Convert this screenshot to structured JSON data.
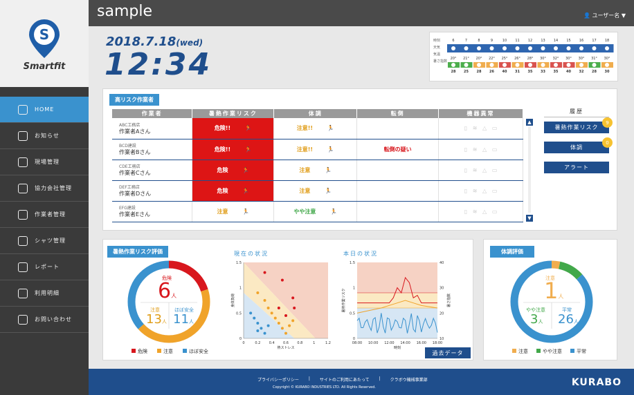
{
  "app": {
    "brand": "sample",
    "user_label": "ユーザー名 ▼",
    "logo_text": "Smartfit"
  },
  "nav": {
    "items": [
      {
        "label": "HOME",
        "icon": "home-icon"
      },
      {
        "label": "お知らせ",
        "icon": "info-icon"
      },
      {
        "label": "現場管理",
        "icon": "site-icon"
      },
      {
        "label": "協力会社管理",
        "icon": "handshake-icon"
      },
      {
        "label": "作業者管理",
        "icon": "helmet-icon"
      },
      {
        "label": "シャツ管理",
        "icon": "shirt-icon"
      },
      {
        "label": "レポート",
        "icon": "report-icon"
      },
      {
        "label": "利用明細",
        "icon": "statement-icon"
      },
      {
        "label": "お問い合わせ",
        "icon": "question-icon"
      }
    ]
  },
  "clock": {
    "date": "2018.7.18",
    "weekday": "(wed)",
    "time": "12:34"
  },
  "weather": {
    "row_labels": [
      "時刻",
      "天気",
      "気温",
      "暑さ指数"
    ],
    "hours": [
      "6",
      "7",
      "8",
      "9",
      "10",
      "11",
      "12",
      "13",
      "14",
      "15",
      "16",
      "17",
      "18"
    ],
    "temps": [
      "20",
      "21",
      "20",
      "22",
      "25",
      "26",
      "28",
      "30",
      "32",
      "30",
      "30",
      "31",
      "30"
    ],
    "wbgt": [
      "28",
      "25",
      "28",
      "26",
      "40",
      "31",
      "35",
      "33",
      "35",
      "40",
      "32",
      "28",
      "30"
    ],
    "wbgt_colors": [
      "#4cae4c",
      "#4cae4c",
      "#f0ad4e",
      "#f0ad4e",
      "#d9534f",
      "#f0ad4e",
      "#d9534f",
      "#f0ad4e",
      "#d9534f",
      "#d9534f",
      "#f0ad4e",
      "#4cae4c",
      "#f0ad4e"
    ]
  },
  "high_risk": {
    "title": "高リスク作業者",
    "headers": [
      "作業者",
      "暑熱作業リスク",
      "体調",
      "転倒",
      "機器異常"
    ],
    "rows": [
      {
        "company": "ABC工務店",
        "name": "作業者Aさん",
        "heat": "危険!!",
        "heat_level": "red",
        "cond": "注意!!",
        "cond_level": "oj",
        "fall": ""
      },
      {
        "company": "BCD建設",
        "name": "作業者Bさん",
        "heat": "危険!!",
        "heat_level": "red",
        "cond": "注意!!",
        "cond_level": "oj",
        "fall": "転倒の疑い"
      },
      {
        "company": "CDE工務店",
        "name": "作業者Cさん",
        "heat": "危険",
        "heat_level": "red",
        "cond": "注意",
        "cond_level": "oj",
        "fall": ""
      },
      {
        "company": "DEF工務店",
        "name": "作業者Dさん",
        "heat": "危険",
        "heat_level": "red",
        "cond": "注意",
        "cond_level": "oj",
        "fall": ""
      },
      {
        "company": "EFG建設",
        "name": "作業者Eさん",
        "heat": "注意",
        "heat_level": "oj",
        "cond": "やや注意",
        "cond_level": "gn",
        "fall": ""
      }
    ]
  },
  "history": {
    "title": "履歴",
    "buttons": [
      {
        "label": "暑熱作業リスク",
        "badge": "9"
      },
      {
        "label": "体調",
        "badge": "0"
      },
      {
        "label": "アラート",
        "badge": ""
      }
    ]
  },
  "heat_eval": {
    "title": "暑熱作業リスク評価",
    "center_label": "危険",
    "center_value": "6",
    "unit": "人",
    "left_label": "注意",
    "left_value": "13",
    "right_label": "ほぼ安全",
    "right_value": "11",
    "legend": [
      "危険",
      "注意",
      "ほぼ安全"
    ]
  },
  "current": {
    "title": "現在の状況",
    "xlabel": "熱ストレス",
    "ylabel": "身体負荷",
    "xticks": [
      "0",
      "0.2",
      "0.4",
      "0.6",
      "0.8",
      "1",
      "1.2"
    ],
    "yticks": [
      "1.5",
      "1",
      "0.5",
      "0"
    ]
  },
  "today": {
    "title": "本日の状況",
    "xlabel": "時刻",
    "ylabel_left": "暑熱作業リスク",
    "ylabel_right": "暑さ指数",
    "xticks": [
      "08:00",
      "10:00",
      "12:00",
      "14:00",
      "16:00",
      "18:00"
    ],
    "yticks_left": [
      "1.5",
      "1",
      "0.5",
      "0"
    ],
    "yticks_right": [
      "40",
      "30",
      "20",
      "10"
    ]
  },
  "past_button": "過去データ",
  "cond_eval": {
    "title": "体調評価",
    "center_label": "注意",
    "center_value": "1",
    "unit": "人",
    "left_label": "やや注意",
    "left_value": "3",
    "right_label": "平常",
    "right_value": "26",
    "legend": [
      "注意",
      "やや注意",
      "平常"
    ]
  },
  "footer": {
    "links": [
      "プライバシーポリシー",
      "サイトのご利用にあたって",
      "クラボウ機械事業部"
    ],
    "copyright": "Copyright © KURABO INDUSTRIES LTD. All Rights Reserved.",
    "logo": "KURABO"
  }
}
